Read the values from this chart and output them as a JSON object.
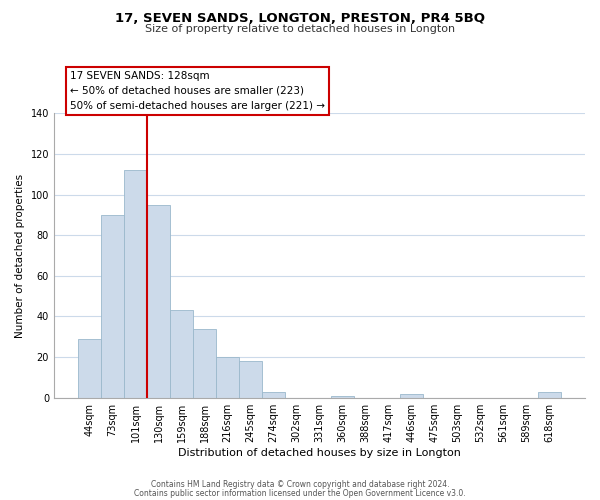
{
  "title": "17, SEVEN SANDS, LONGTON, PRESTON, PR4 5BQ",
  "subtitle": "Size of property relative to detached houses in Longton",
  "xlabel": "Distribution of detached houses by size in Longton",
  "ylabel": "Number of detached properties",
  "bar_labels": [
    "44sqm",
    "73sqm",
    "101sqm",
    "130sqm",
    "159sqm",
    "188sqm",
    "216sqm",
    "245sqm",
    "274sqm",
    "302sqm",
    "331sqm",
    "360sqm",
    "388sqm",
    "417sqm",
    "446sqm",
    "475sqm",
    "503sqm",
    "532sqm",
    "561sqm",
    "589sqm",
    "618sqm"
  ],
  "bar_values": [
    29,
    90,
    112,
    95,
    43,
    34,
    20,
    18,
    3,
    0,
    0,
    1,
    0,
    0,
    2,
    0,
    0,
    0,
    0,
    0,
    3
  ],
  "bar_color": "#ccdaea",
  "bar_edge_color": "#9ab8cc",
  "vline_color": "#cc0000",
  "ylim": [
    0,
    140
  ],
  "annotation_title": "17 SEVEN SANDS: 128sqm",
  "annotation_line1": "← 50% of detached houses are smaller (223)",
  "annotation_line2": "50% of semi-detached houses are larger (221) →",
  "footer1": "Contains HM Land Registry data © Crown copyright and database right 2024.",
  "footer2": "Contains public sector information licensed under the Open Government Licence v3.0.",
  "background_color": "#ffffff",
  "grid_color": "#ccdaea"
}
